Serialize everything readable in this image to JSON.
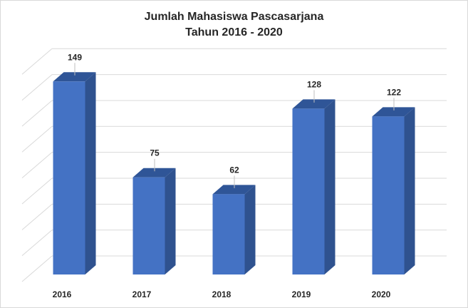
{
  "chart_data": {
    "type": "bar",
    "title_line1": "Jumlah Mahasiswa Pascasarjana",
    "title_line2": "Tahun 2016 - 2020",
    "categories": [
      "2016",
      "2017",
      "2018",
      "2019",
      "2020"
    ],
    "values": [
      149,
      75,
      62,
      128,
      122
    ],
    "xlabel": "",
    "ylabel": "",
    "ylim": [
      0,
      160
    ],
    "grid": true,
    "legend": "none",
    "three_d": true,
    "colors": {
      "bar_front": "#4472c4",
      "bar_side": "#2f528f",
      "bar_top": "#2f5597",
      "grid": "#d9d9d9"
    }
  }
}
